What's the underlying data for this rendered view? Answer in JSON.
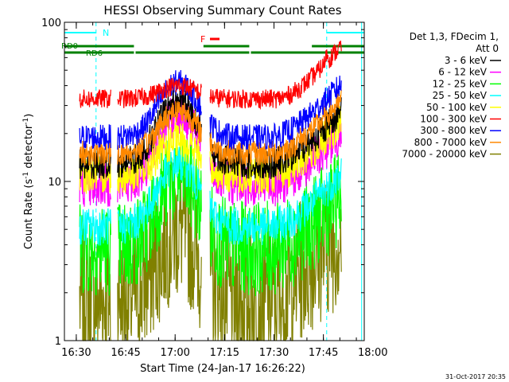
{
  "chart_data": {
    "type": "line",
    "title": "HESSI Observing Summary Count Rates",
    "xlabel": "Start Time (24-Jan-17 16:26:22)",
    "ylabel_main": "Count Rate (s",
    "ylabel_sup1": "-1",
    "ylabel_mid": " detector",
    "ylabel_sup2": "-1",
    "ylabel_end": ")",
    "y_scale": "log",
    "ylim": [
      1,
      100
    ],
    "xlim_minutes": [
      -3.6,
      87.4
    ],
    "x_ticks": [
      {
        "m": 0,
        "label": "16:30"
      },
      {
        "m": 15,
        "label": "16:45"
      },
      {
        "m": 30,
        "label": "17:00"
      },
      {
        "m": 45,
        "label": "17:15"
      },
      {
        "m": 60,
        "label": "17:30"
      },
      {
        "m": 75,
        "label": "17:45"
      },
      {
        "m": 90,
        "label": "18:00"
      }
    ],
    "y_ticks": [
      {
        "v": 1,
        "label": "1"
      },
      {
        "v": 10,
        "label": "10"
      },
      {
        "v": 100,
        "label": "100"
      }
    ],
    "legend_header": [
      "Det 1,3, FDecim 1,",
      "Att 0"
    ],
    "legend_placement": "right",
    "series": [
      {
        "name": "3 - 6 keV",
        "color": "#000000",
        "baseline": 13,
        "peak": 32,
        "noise": 0.1
      },
      {
        "name": "6 - 12 keV",
        "color": "#ff00ff",
        "baseline": 9.5,
        "peak": 26,
        "noise": 0.14
      },
      {
        "name": "12 - 25 keV",
        "color": "#00ff00",
        "baseline": 3.8,
        "peak": 11,
        "noise": 0.3
      },
      {
        "name": "25 - 50 keV",
        "color": "#00ffff",
        "baseline": 5.2,
        "peak": 13,
        "noise": 0.12
      },
      {
        "name": "50 - 100 keV",
        "color": "#ffff00",
        "baseline": 11,
        "peak": 18,
        "noise": 0.12
      },
      {
        "name": "100 - 300 keV",
        "color": "#ff0000",
        "baseline": 33,
        "peak": 40,
        "noise": 0.06
      },
      {
        "name": "300 - 800 keV",
        "color": "#0000ff",
        "baseline": 19,
        "peak": 42,
        "noise": 0.08
      },
      {
        "name": "800 - 7000 keV",
        "color": "#ff8800",
        "baseline": 15,
        "peak": 28,
        "noise": 0.08
      },
      {
        "name": "7000 - 20000 keV",
        "color": "#808000",
        "baseline": 1.8,
        "peak": 4.8,
        "noise": 0.45
      }
    ],
    "annotations": {
      "night_label": "N",
      "flare_label": "F",
      "rd0_label": "RD0",
      "rd6_label": "RD6"
    },
    "data_gaps_minutes": [
      [
        10.5,
        12.5
      ],
      [
        38.0,
        40.5
      ]
    ]
  },
  "footer": {
    "timestamp": "31-Oct-2017 20:35"
  }
}
